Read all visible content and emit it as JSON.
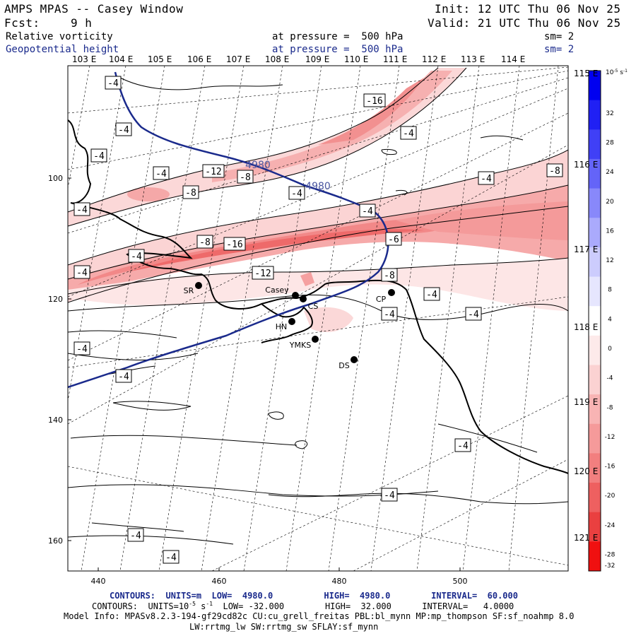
{
  "header": {
    "title": "AMPS MPAS -- Casey Window",
    "init": "Init: 12 UTC Thu 06 Nov 25",
    "fcst_label": "Fcst:",
    "fcst_value": "9 h",
    "valid": "Valid: 21 UTC Thu 06 Nov 25",
    "field1_name": "Relative vorticity",
    "field1_level": "at pressure =  500 hPa",
    "field1_sm": "sm= 2",
    "field2_name": "Geopotential height",
    "field2_level": "at pressure =  500 hPa",
    "field2_sm": "sm= 2"
  },
  "top_lon_labels": [
    "103 E",
    "104 E",
    "105 E",
    "106 E",
    "107 E",
    "108 E",
    "109 E",
    "110 E",
    "111 E",
    "112 E",
    "113 E",
    "114 E"
  ],
  "right_lon_labels": [
    "115 E",
    "116 E",
    "117 E",
    "118 E",
    "119 E",
    "120 E",
    "121 E"
  ],
  "y_axis_ticks": [
    "100",
    "120",
    "140",
    "160"
  ],
  "x_axis_ticks": [
    "440",
    "460",
    "480",
    "500"
  ],
  "contour_labels_vorticity": [
    "-16",
    "-4",
    "-4",
    "-4",
    "-4",
    "-12",
    "-8",
    "-8",
    "-4",
    "-8",
    "-4",
    "-4",
    "-8",
    "-16",
    "-6",
    "-4",
    "-12",
    "-8",
    "-4",
    "-4",
    "-4",
    "-4",
    "-4",
    "-4",
    "-4",
    "-4",
    "-4",
    "-4",
    "-4",
    "-4"
  ],
  "contour_labels_height": [
    "4980",
    "4980"
  ],
  "stations": [
    "SR",
    "Casey",
    "CS",
    "HN",
    "YMKS",
    "CP",
    "DS"
  ],
  "colorbar": {
    "unit": "10",
    "unit_exp": "-5",
    "unit_tail": "s",
    "unit_tail_exp": "-1",
    "ticks": [
      "32",
      "28",
      "24",
      "20",
      "16",
      "12",
      "8",
      "4",
      "0",
      "-4",
      "-8",
      "-12",
      "-16",
      "-20",
      "-24",
      "-28",
      "-32"
    ],
    "colors": [
      "#0000f0",
      "#2020f4",
      "#4040f6",
      "#6464f8",
      "#8888fa",
      "#aaaafc",
      "#ccccfd",
      "#e6e6fe",
      "#ffffff",
      "#fdeaea",
      "#fbd2d2",
      "#f8b4b4",
      "#f59a9a",
      "#f27f7f",
      "#ee6060",
      "#ea4040",
      "#f01010"
    ]
  },
  "footer": {
    "line1": "CONTOURS:  UNITS=m  LOW=  4980.0          HIGH=  4980.0        INTERVAL=  60.000",
    "line2a": "CONTOURS:  UNITS=10",
    "line2exp": "-5",
    "line2b": " s",
    "line2exp2": "-1",
    "line2c": "  LOW= -32.000        HIGH=  32.000      INTERVAL=   4.0000",
    "line3": "Model Info: MPASv8.2.3-194-gf29cd82c CU:cu_grell_freitas PBL:bl_mynn MP:mp_thompson SF:sf_noahmp 8.0",
    "line4": "LW:rrtmg_lw SW:rrtmg_sw SFLAY:sf_mynn"
  }
}
